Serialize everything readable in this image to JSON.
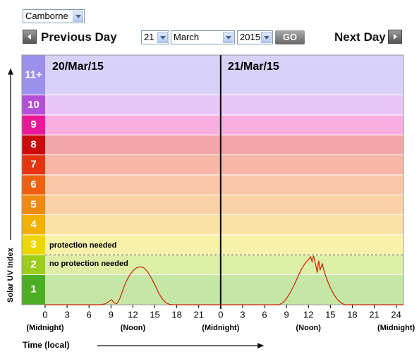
{
  "controls": {
    "location": "Camborne",
    "previous": "Previous Day",
    "day": "21",
    "month": "March",
    "year": "2015",
    "go": "GO",
    "next": "Next Day"
  },
  "chart_data": {
    "type": "line",
    "y_label": "Solar UV Index",
    "x_label": "Time (local)",
    "ylim": [
      0,
      12.5
    ],
    "xlim": [
      0,
      49
    ],
    "bands": [
      {
        "label": "1",
        "from": 0,
        "to": 1.5,
        "color": "#4caf23",
        "fill": "#c6e6a6"
      },
      {
        "label": "2",
        "from": 1.5,
        "to": 2.5,
        "color": "#9ccc1c",
        "fill": "#ddeea6"
      },
      {
        "label": "3",
        "from": 2.5,
        "to": 3.5,
        "color": "#eed600",
        "fill": "#f8f2a8"
      },
      {
        "label": "4",
        "from": 3.5,
        "to": 4.5,
        "color": "#f2b000",
        "fill": "#fae2a6"
      },
      {
        "label": "5",
        "from": 4.5,
        "to": 5.5,
        "color": "#f08a10",
        "fill": "#fad2a6"
      },
      {
        "label": "6",
        "from": 5.5,
        "to": 6.5,
        "color": "#ee6010",
        "fill": "#fac6a6"
      },
      {
        "label": "7",
        "from": 6.5,
        "to": 7.5,
        "color": "#e43412",
        "fill": "#f8b6a6"
      },
      {
        "label": "8",
        "from": 7.5,
        "to": 8.5,
        "color": "#cc0a0a",
        "fill": "#f2a6a8"
      },
      {
        "label": "9",
        "from": 8.5,
        "to": 9.5,
        "color": "#e81896",
        "fill": "#f8aee0"
      },
      {
        "label": "10",
        "from": 9.5,
        "to": 10.5,
        "color": "#b450d8",
        "fill": "#eac6f8"
      },
      {
        "label": "11+",
        "from": 10.5,
        "to": 12.5,
        "color": "#9c90ec",
        "fill": "#d8d2fa"
      }
    ],
    "threshold": 2.5,
    "above_label": "protection needed",
    "below_label": "no protection needed",
    "days": [
      {
        "label": "20/Mar/15",
        "start": 0
      },
      {
        "label": "21/Mar/15",
        "start": 24
      }
    ],
    "xticks": [
      0,
      3,
      6,
      9,
      12,
      15,
      18,
      21,
      {
        "value": 24,
        "label": "0"
      },
      {
        "value": 27,
        "label": "3"
      },
      {
        "value": 30,
        "label": "6"
      },
      {
        "value": 33,
        "label": "9"
      },
      {
        "value": 36,
        "label": "12"
      },
      {
        "value": 39,
        "label": "15"
      },
      {
        "value": 42,
        "label": "18"
      },
      {
        "value": 45,
        "label": "21"
      },
      {
        "value": 48,
        "label": "24"
      }
    ],
    "xsublabels": [
      {
        "value": 0,
        "label": "(Midnight)"
      },
      {
        "value": 12,
        "label": "(Noon)"
      },
      {
        "value": 24,
        "label": "(Midnight)"
      },
      {
        "value": 36,
        "label": "(Noon)"
      },
      {
        "value": 48,
        "label": "(Midnight)"
      }
    ],
    "series": [
      {
        "color": "#cc2200",
        "x": [
          0,
          7.5,
          8.3,
          8.8,
          9.1,
          9.4,
          9.8,
          10.2,
          10.6,
          11,
          11.5,
          12,
          12.5,
          13,
          13.5,
          14,
          14.5,
          15,
          15.5,
          16,
          16.5,
          17,
          17.5,
          32,
          32.5,
          33,
          33.5,
          34,
          34.5,
          35,
          35.5,
          36,
          36.3,
          36.5,
          36.7,
          37,
          37.2,
          37.4,
          37.6,
          37.9,
          38.2,
          38.6,
          39,
          39.5,
          40,
          40.5,
          41,
          49
        ],
        "values": [
          0,
          0,
          0.05,
          0.2,
          0.25,
          0.1,
          0.05,
          0.3,
          0.7,
          1.1,
          1.45,
          1.7,
          1.85,
          1.9,
          1.85,
          1.65,
          1.35,
          1.0,
          0.6,
          0.3,
          0.1,
          0.02,
          0,
          0,
          0.1,
          0.3,
          0.6,
          0.95,
          1.35,
          1.75,
          2.05,
          2.25,
          2.4,
          2.15,
          2.45,
          2.0,
          1.6,
          2.2,
          1.75,
          2.05,
          1.6,
          1.2,
          0.85,
          0.5,
          0.25,
          0.08,
          0,
          0
        ]
      }
    ]
  }
}
